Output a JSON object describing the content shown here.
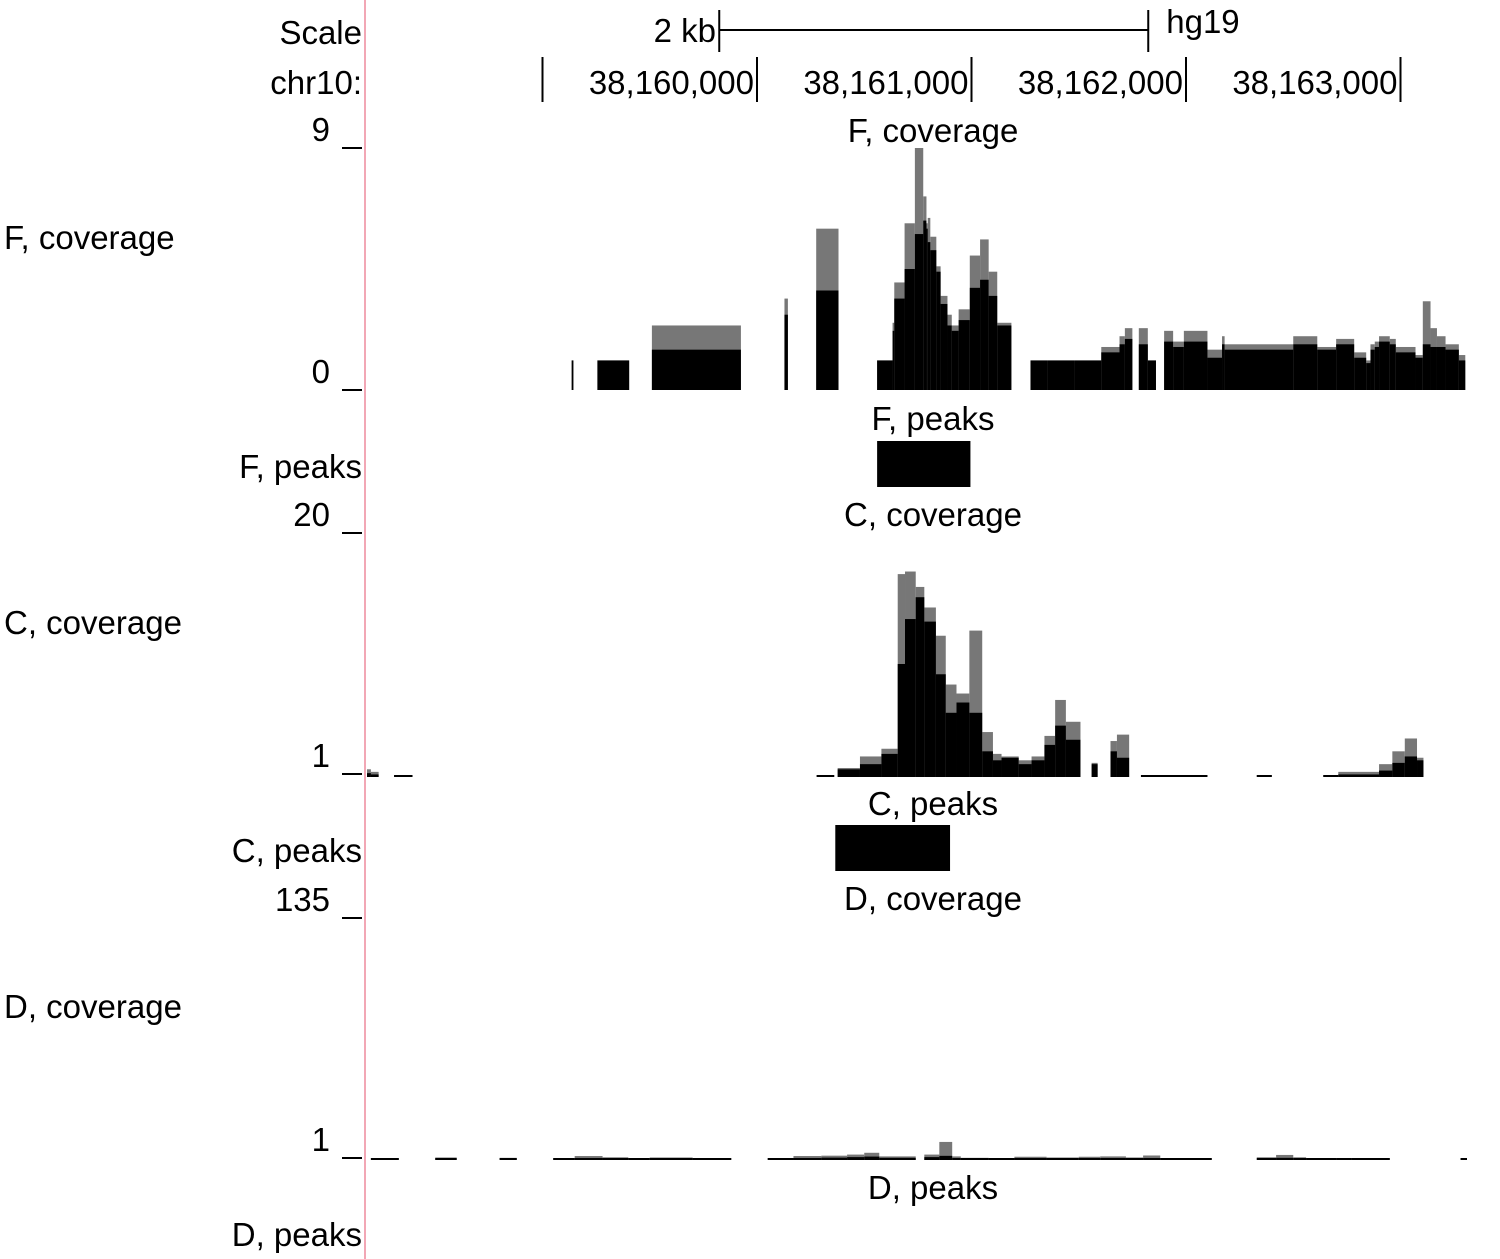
{
  "assembly": "hg19",
  "scale": {
    "label": "Scale",
    "bar_label": "2 kb",
    "start_bp": 38159824,
    "end_bp": 38161824
  },
  "position": {
    "chrom_label": "chr10:",
    "ticks": [
      {
        "bp": 38159000,
        "label": ""
      },
      {
        "bp": 38160000,
        "label": "38,160,000"
      },
      {
        "bp": 38161000,
        "label": "38,161,000"
      },
      {
        "bp": 38162000,
        "label": "38,162,000"
      },
      {
        "bp": 38163000,
        "label": "38,163,000"
      }
    ]
  },
  "chart_data": [
    {
      "type": "area",
      "title": "F, coverage",
      "track_label": "F, coverage",
      "ylim": [
        0,
        9
      ],
      "ytick_top": "9",
      "ytick_bottom": "0",
      "colors": {
        "mean": "#000000",
        "max": "#777777"
      },
      "x": [
        38159024,
        38159136,
        38159144,
        38159256,
        38159404,
        38159510,
        38159925,
        38160128,
        38160144,
        38160276,
        38160380,
        38160560,
        38160632,
        38160640,
        38160688,
        38160736,
        38160775,
        38160790,
        38160796,
        38160808,
        38160836,
        38160856,
        38160888,
        38160908,
        38160940,
        38160992,
        38161040,
        38161080,
        38161120,
        38161186,
        38161275,
        38161356,
        38161482,
        38161605,
        38161690,
        38161715,
        38161750,
        38161780,
        38161822,
        38161860,
        38161898,
        38161940,
        38161990,
        38162100,
        38162168,
        38162180,
        38162500,
        38162612,
        38162700,
        38162784,
        38162840,
        38162860,
        38162880,
        38162900,
        38162950,
        38162978,
        38163070,
        38163104,
        38163140,
        38163170,
        38163210,
        38163272
      ],
      "series": [
        {
          "name": "mean",
          "values": [
            0,
            1.1,
            0,
            1.1,
            0,
            1.5,
            0,
            2.8,
            0,
            3.7,
            0,
            1.1,
            2.2,
            3.4,
            4.5,
            5.8,
            6.3,
            6.0,
            5.5,
            5.2,
            4.4,
            3.2,
            2.4,
            2.2,
            2.6,
            3.8,
            4.1,
            3.5,
            2.4,
            0,
            1.1,
            1.1,
            1.1,
            1.4,
            1.7,
            1.9,
            0,
            1.7,
            1.1,
            0,
            1.8,
            1.6,
            1.8,
            1.2,
            1.7,
            1.5,
            1.7,
            1.5,
            1.7,
            1.2,
            1.0,
            1.5,
            1.6,
            1.8,
            1.7,
            1.4,
            1.2,
            1.7,
            1.6,
            1.6,
            1.5,
            1.1
          ]
        },
        {
          "name": "max",
          "values": [
            0,
            1.1,
            0,
            1.1,
            0,
            2.4,
            0,
            3.4,
            0,
            6.0,
            0,
            1.1,
            2.5,
            4.0,
            6.2,
            9.0,
            7.2,
            6.2,
            6.4,
            5.7,
            4.6,
            3.5,
            2.8,
            2.4,
            3.0,
            5.0,
            5.6,
            4.4,
            2.5,
            0,
            1.1,
            1.1,
            1.1,
            1.6,
            2.0,
            2.3,
            0,
            2.3,
            1.1,
            0,
            2.2,
            1.8,
            2.2,
            1.5,
            2.0,
            1.7,
            2.0,
            1.6,
            1.9,
            1.4,
            1.1,
            1.7,
            1.8,
            2.0,
            1.9,
            1.6,
            1.3,
            3.3,
            2.3,
            2.0,
            1.7,
            1.3
          ]
        }
      ]
    },
    {
      "type": "bar",
      "title": "F, peaks",
      "track_label": "F, peaks",
      "intervals": [
        {
          "start": 38160560,
          "end": 38160995
        }
      ]
    },
    {
      "type": "area",
      "title": "C, coverage",
      "track_label": "C, coverage",
      "ylim": [
        1,
        20
      ],
      "ytick_top": "20",
      "ytick_bottom": "1",
      "colors": {
        "mean": "#000000",
        "max": "#777777"
      },
      "x": [
        38158060,
        38158128,
        38158160,
        38158180,
        38158200,
        38158236,
        38158308,
        38158394,
        38160278,
        38160360,
        38160376,
        38160480,
        38160580,
        38160656,
        38160690,
        38160740,
        38160780,
        38160834,
        38160880,
        38160930,
        38160990,
        38161050,
        38161100,
        38161140,
        38161220,
        38161280,
        38161340,
        38161390,
        38161440,
        38161508,
        38161560,
        38161588,
        38161648,
        38161678,
        38161735,
        38161790,
        38162100,
        38162330,
        38162400,
        38162640,
        38162710,
        38162900,
        38162962,
        38163020,
        38163077
      ],
      "series": [
        {
          "name": "mean",
          "values": [
            0,
            1.2,
            1.4,
            1.3,
            1.2,
            0,
            1.1,
            0,
            1.1,
            0,
            1.6,
            2.0,
            2.8,
            9.8,
            13.3,
            15.0,
            13.1,
            9.0,
            6.0,
            6.8,
            6.0,
            3.0,
            2.3,
            2.5,
            2.0,
            2.3,
            3.5,
            5.0,
            3.9,
            0,
            2.0,
            0,
            3.0,
            2.5,
            0,
            1.1,
            0,
            1.1,
            0,
            1.1,
            1.2,
            1.5,
            2.1,
            2.6,
            2.3
          ]
        },
        {
          "name": "max",
          "values": [
            0,
            1.4,
            2.2,
            1.6,
            1.4,
            0,
            1.1,
            0,
            1.1,
            0,
            1.7,
            2.6,
            3.2,
            16.8,
            17.0,
            15.8,
            14.2,
            12.0,
            8.2,
            7.5,
            12.4,
            4.5,
            2.8,
            2.6,
            2.3,
            2.6,
            4.2,
            7.0,
            5.3,
            0,
            2.1,
            0,
            3.8,
            4.3,
            0,
            1.1,
            0,
            1.1,
            0,
            1.1,
            1.4,
            2.0,
            3.0,
            4.0,
            2.5
          ]
        }
      ]
    },
    {
      "type": "bar",
      "title": "C, peaks",
      "track_label": "C, peaks",
      "intervals": [
        {
          "start": 38160365,
          "end": 38160900
        }
      ]
    },
    {
      "type": "area",
      "title": "D, coverage",
      "track_label": "D, coverage",
      "ylim": [
        1,
        135
      ],
      "ytick_top": "135",
      "ytick_bottom": "1",
      "colors": {
        "mean": "#000000",
        "max": "#777777"
      },
      "x": [
        38158100,
        38158200,
        38158330,
        38158500,
        38158600,
        38158800,
        38158880,
        38159050,
        38159150,
        38159280,
        38159400,
        38159500,
        38159700,
        38159880,
        38160050,
        38160170,
        38160300,
        38160420,
        38160500,
        38160570,
        38160740,
        38160780,
        38160850,
        38160910,
        38160950,
        38161080,
        38161200,
        38161350,
        38161500,
        38161600,
        38161720,
        38161800,
        38161880,
        38162000,
        38162120,
        38162330,
        38162420,
        38162500,
        38162560,
        38162700,
        38162770,
        38162950,
        38163280
      ],
      "series": [
        {
          "name": "mean",
          "values": [
            0,
            1.5,
            0,
            1.6,
            0,
            1.5,
            0,
            1.6,
            2.0,
            1.8,
            1.6,
            1.8,
            1.5,
            0,
            1.6,
            2.0,
            2.3,
            2.6,
            2.9,
            2.2,
            0,
            2.6,
            3.3,
            2.1,
            1.8,
            1.5,
            2.0,
            1.8,
            2.0,
            2.1,
            1.8,
            2.0,
            1.5,
            1.6,
            0,
            1.7,
            2.2,
            1.8,
            1.5,
            1.4,
            1.5,
            0,
            1.5
          ]
        },
        {
          "name": "max",
          "values": [
            0,
            2.0,
            0,
            2.4,
            0,
            2.2,
            0,
            2.0,
            3.2,
            2.5,
            2.0,
            2.4,
            2.0,
            0,
            2.0,
            3.2,
            3.4,
            4.0,
            5.0,
            3.0,
            0,
            4.0,
            11.0,
            3.0,
            2.2,
            2.0,
            2.8,
            2.4,
            2.8,
            3.0,
            2.4,
            3.5,
            1.8,
            2.0,
            0,
            2.5,
            3.8,
            2.5,
            2.0,
            1.7,
            1.8,
            0,
            2.0
          ]
        }
      ]
    },
    {
      "type": "bar",
      "title": "D, peaks",
      "track_label": "D, peaks",
      "intervals": []
    }
  ]
}
